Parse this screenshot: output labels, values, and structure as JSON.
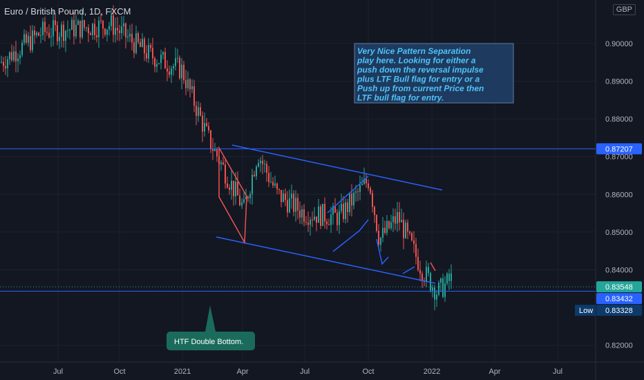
{
  "header": {
    "symbol_title": "Euro / British Pound, 1D, FXCM",
    "currency": "GBP"
  },
  "annotations": {
    "note_text": [
      "Very Nice Pattern Separation",
      "play here. Looking for  either a",
      "push down the reversal impulse",
      "plus LTF Bull flag for entry or a",
      "Push up from current Price then",
      "LTF bull flag for entry."
    ],
    "callout_text": "HTF Double Bottom.",
    "low_label": "Low"
  },
  "colors": {
    "background": "#131722",
    "up": "#26a69a",
    "down": "#ef5350",
    "pattern_blue": "#2962ff",
    "note_bg": "#1e3a5f",
    "note_text": "#4fc3f7",
    "callout": "#1b6b5c",
    "price_axis_text": "#b2b5be"
  },
  "chart_data": {
    "type": "candlestick",
    "title": "Euro / British Pound, 1D, FXCM",
    "ylim": [
      0.815,
      0.911
    ],
    "y_ticks": [
      "0.82000",
      "0.84000",
      "0.85000",
      "0.86000",
      "0.87000",
      "0.88000",
      "0.89000",
      "0.90000"
    ],
    "x_ticks": [
      "Jul",
      "Oct",
      "2021",
      "Apr",
      "Jul",
      "Oct",
      "2022",
      "Apr",
      "Jul"
    ],
    "price_labels": [
      {
        "value": "0.87207",
        "style": "line"
      },
      {
        "value": "0.83548",
        "style": "last"
      },
      {
        "value": "0.83432",
        "style": "line"
      },
      {
        "value": "0.83328",
        "style": "low"
      }
    ],
    "key_points": [
      {
        "period": "Jun 2020",
        "price": 0.895
      },
      {
        "period": "Aug 2020",
        "price": 0.903
      },
      {
        "period": "Oct 2020",
        "price": 0.905
      },
      {
        "period": "Nov 2020",
        "price": 0.897
      },
      {
        "period": "Jan 2021",
        "price": 0.893
      },
      {
        "period": "Feb 2021",
        "price": 0.875
      },
      {
        "period": "Mar 2021",
        "price": 0.856
      },
      {
        "period": "Apr 2021",
        "price": 0.871
      },
      {
        "period": "May 2021",
        "price": 0.86
      },
      {
        "period": "Jul 2021",
        "price": 0.855
      },
      {
        "period": "Aug 2021",
        "price": 0.854
      },
      {
        "period": "Sep 2021",
        "price": 0.864
      },
      {
        "period": "Oct 2021",
        "price": 0.848
      },
      {
        "period": "Nov 2021",
        "price": 0.854
      },
      {
        "period": "Dec 2021",
        "price": 0.84
      },
      {
        "period": "Jan 2022",
        "price": 0.834
      },
      {
        "period": "Jan 2022",
        "price": 0.838
      }
    ],
    "horizontal_lines": [
      0.87207,
      0.83432
    ]
  }
}
